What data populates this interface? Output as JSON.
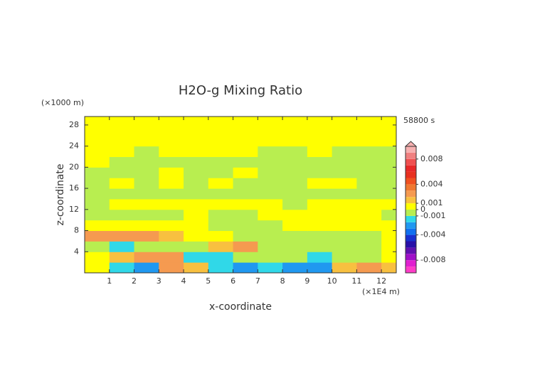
{
  "chart_data": {
    "type": "contour",
    "title": "H2O-g Mixing Ratio",
    "x_label": "x-coordinate",
    "y_label": "z-coordinate",
    "x_unit": "(×1E4 m)",
    "y_unit": "(×1000 m)",
    "time": "58800 s",
    "xlim": [
      0,
      12.6
    ],
    "ylim": [
      0,
      29.6
    ],
    "xticks": [
      1,
      2,
      3,
      4,
      5,
      6,
      7,
      8,
      9,
      10,
      11,
      12
    ],
    "yticks": [
      4,
      8,
      12,
      16,
      20,
      24,
      28
    ],
    "x": [
      0.5,
      1.5,
      2.5,
      3.5,
      4.5,
      5.5,
      6.5,
      7.5,
      8.5,
      9.5,
      10.5,
      11.5,
      12.5
    ],
    "y": [
      1,
      3,
      5,
      7,
      9,
      11,
      13,
      15,
      17,
      19,
      21,
      23,
      25,
      27,
      29
    ],
    "z": [
      [
        0.0005,
        -0.0015,
        -0.0025,
        0.0025,
        0.0015,
        -0.0015,
        -0.0025,
        -0.0015,
        -0.0025,
        -0.0025,
        0.0015,
        0.0025,
        0.0015
      ],
      [
        0.0005,
        0.0015,
        0.0025,
        0.0025,
        -0.0015,
        -0.0015,
        -0.0005,
        -0.0005,
        -0.0005,
        -0.0015,
        -0.0005,
        -0.0005,
        0.0005
      ],
      [
        -0.0005,
        -0.0015,
        -0.0005,
        -0.0005,
        -0.0005,
        0.0015,
        0.0025,
        -0.0005,
        -0.0005,
        -0.0005,
        -0.0005,
        -0.0005,
        0.0005
      ],
      [
        0.0025,
        0.0025,
        0.0025,
        0.0015,
        0.0005,
        0.0005,
        -0.0005,
        -0.0005,
        -0.0005,
        -0.0005,
        -0.0005,
        -0.0005,
        0.0005
      ],
      [
        0.0005,
        0.0005,
        0.0005,
        0.0005,
        0.0005,
        -0.0005,
        -0.0005,
        -0.0005,
        0.0005,
        0.0005,
        0.0005,
        0.0005,
        0.0005
      ],
      [
        -0.0005,
        -0.0005,
        -0.0005,
        -0.0005,
        0.0005,
        -0.0005,
        -0.0005,
        0.0005,
        0.0005,
        0.0005,
        0.0005,
        0.0005,
        -0.0005
      ],
      [
        -0.0005,
        0.0005,
        0.0005,
        0.0005,
        0.0005,
        0.0005,
        0.0005,
        0.0005,
        -0.0005,
        0.0005,
        0.0005,
        0.0005,
        0.0005
      ],
      [
        -0.0005,
        -0.0005,
        -0.0005,
        -0.0005,
        -0.0005,
        -0.0005,
        -0.0005,
        -0.0005,
        -0.0005,
        -0.0005,
        -0.0005,
        -0.0005,
        -0.0005
      ],
      [
        -0.0005,
        0.0005,
        -0.0005,
        0.0005,
        -0.0005,
        0.0005,
        -0.0005,
        -0.0005,
        -0.0005,
        0.0005,
        0.0005,
        -0.0005,
        -0.0005
      ],
      [
        -0.0005,
        -0.0005,
        -0.0005,
        0.0005,
        -0.0005,
        -0.0005,
        0.0005,
        -0.0005,
        -0.0005,
        -0.0005,
        -0.0005,
        -0.0005,
        -0.0005
      ],
      [
        0.0005,
        -0.0005,
        -0.0005,
        -0.0005,
        -0.0005,
        -0.0005,
        -0.0005,
        -0.0005,
        -0.0005,
        -0.0005,
        -0.0005,
        -0.0005,
        -0.0005
      ],
      [
        0.0005,
        0.0005,
        -0.0005,
        0.0005,
        0.0005,
        0.0005,
        0.0005,
        -0.0005,
        -0.0005,
        0.0005,
        -0.0005,
        -0.0005,
        -0.0005
      ],
      [
        0.0005,
        0.0005,
        0.0005,
        0.0005,
        0.0005,
        0.0005,
        0.0005,
        0.0005,
        0.0005,
        0.0005,
        0.0005,
        0.0005,
        0.0005
      ],
      [
        0.0005,
        0.0005,
        0.0005,
        0.0005,
        0.0005,
        0.0005,
        0.0005,
        0.0005,
        0.0005,
        0.0005,
        0.0005,
        0.0005,
        0.0005
      ],
      [
        0.0005,
        0.0005,
        0.0005,
        0.0005,
        0.0005,
        0.0005,
        0.0005,
        0.0005,
        0.0005,
        0.0005,
        0.0005,
        0.0005,
        0.0005
      ]
    ],
    "levels": [
      -0.01,
      -0.009,
      -0.008,
      -0.007,
      -0.006,
      -0.005,
      -0.004,
      -0.003,
      -0.002,
      -0.001,
      0,
      0.001,
      0.002,
      0.003,
      0.004,
      0.005,
      0.006,
      0.007,
      0.008,
      0.009,
      0.01
    ],
    "colors": [
      "#ff3cc8",
      "#e020d0",
      "#a010c8",
      "#6010b0",
      "#2810a8",
      "#1830d0",
      "#1070f0",
      "#2098f0",
      "#30d8e8",
      "#b8ee50",
      "#ffff00",
      "#f8c040",
      "#f59a50",
      "#f07830",
      "#f05020",
      "#e83020",
      "#e82828",
      "#f05050",
      "#f08080",
      "#f7b0b0"
    ],
    "colorbar_ticks": [
      0.008,
      0.004,
      0.001,
      0,
      -0.001,
      -0.004,
      -0.008
    ]
  }
}
